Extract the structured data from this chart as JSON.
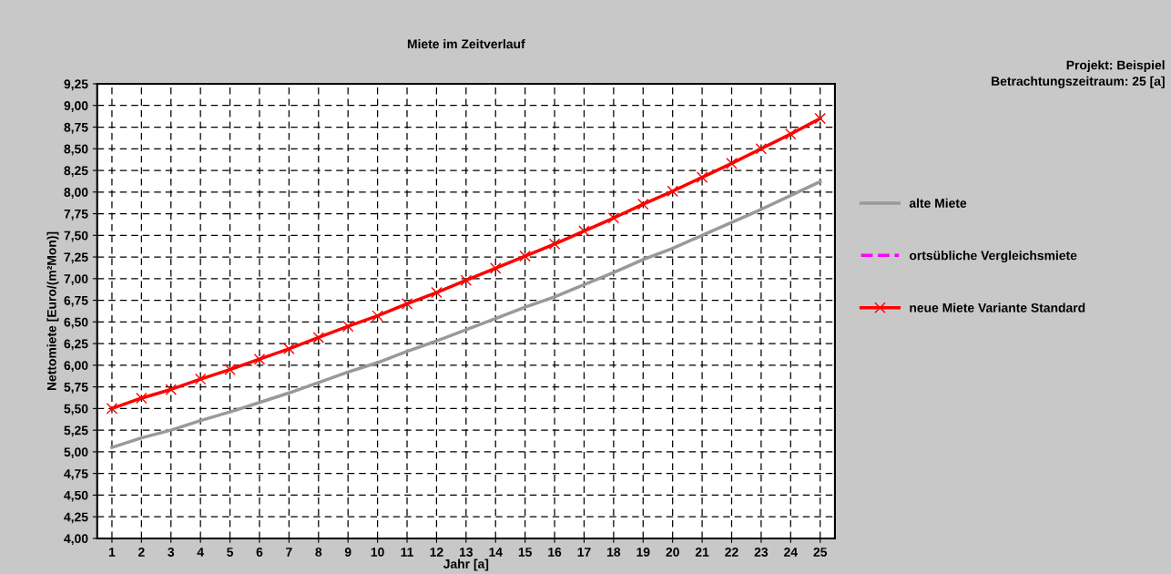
{
  "chart_data": {
    "type": "line",
    "title": "Miete im Zeitverlauf",
    "xlabel": "Jahr [a]",
    "ylabel": "Nettomiete [Euro/(m²Mon)]",
    "annotations": [
      "Projekt: Beispiel",
      "Betrachtungszeitraum: 25 [a]"
    ],
    "categories": [
      "1",
      "2",
      "3",
      "4",
      "5",
      "6",
      "7",
      "8",
      "9",
      "10",
      "11",
      "12",
      "13",
      "14",
      "15",
      "16",
      "17",
      "18",
      "19",
      "20",
      "21",
      "22",
      "23",
      "24",
      "25"
    ],
    "series": [
      {
        "name": "alte Miete",
        "color": "#999999",
        "marker": "none",
        "line_style": "solid",
        "values": [
          5.05,
          5.16,
          5.25,
          5.36,
          5.46,
          5.57,
          5.68,
          5.8,
          5.92,
          6.03,
          6.16,
          6.28,
          6.41,
          6.54,
          6.67,
          6.79,
          6.93,
          7.07,
          7.22,
          7.35,
          7.5,
          7.65,
          7.8,
          7.96,
          8.12
        ]
      },
      {
        "name": "ortsübliche Vergleichsmiete",
        "color": "#ff00ff",
        "marker": "none",
        "line_style": "dashed",
        "values": [
          null,
          null,
          null,
          null,
          null,
          null,
          null,
          null,
          null,
          null,
          null,
          null,
          null,
          null,
          null,
          null,
          null,
          null,
          null,
          null,
          null,
          null,
          null,
          null,
          null
        ]
      },
      {
        "name": "neue Miete Variante Standard",
        "color": "#ff0000",
        "marker": "cross",
        "line_style": "solid",
        "values": [
          5.5,
          5.62,
          5.72,
          5.84,
          5.95,
          6.07,
          6.19,
          6.32,
          6.45,
          6.57,
          6.71,
          6.84,
          6.98,
          7.12,
          7.26,
          7.4,
          7.55,
          7.7,
          7.86,
          8.01,
          8.17,
          8.33,
          8.5,
          8.67,
          8.85
        ]
      }
    ],
    "ylim": [
      4.0,
      9.25
    ],
    "yticks": [
      {
        "value": 4.0,
        "label": "4,00"
      },
      {
        "value": 4.25,
        "label": "4,25"
      },
      {
        "value": 4.5,
        "label": "4,50"
      },
      {
        "value": 4.75,
        "label": "4,75"
      },
      {
        "value": 5.0,
        "label": "5,00"
      },
      {
        "value": 5.25,
        "label": "5,25"
      },
      {
        "value": 5.5,
        "label": "5,50"
      },
      {
        "value": 5.75,
        "label": "5,75"
      },
      {
        "value": 6.0,
        "label": "6,00"
      },
      {
        "value": 6.25,
        "label": "6,25"
      },
      {
        "value": 6.5,
        "label": "6,50"
      },
      {
        "value": 6.75,
        "label": "6,75"
      },
      {
        "value": 7.0,
        "label": "7,00"
      },
      {
        "value": 7.25,
        "label": "7,25"
      },
      {
        "value": 7.5,
        "label": "7,50"
      },
      {
        "value": 7.75,
        "label": "7,75"
      },
      {
        "value": 8.0,
        "label": "8,00"
      },
      {
        "value": 8.25,
        "label": "8,25"
      },
      {
        "value": 8.5,
        "label": "8,50"
      },
      {
        "value": 8.75,
        "label": "8,75"
      },
      {
        "value": 9.0,
        "label": "9,00"
      },
      {
        "value": 9.25,
        "label": "9,25"
      }
    ],
    "grid": true,
    "legend": "right"
  }
}
